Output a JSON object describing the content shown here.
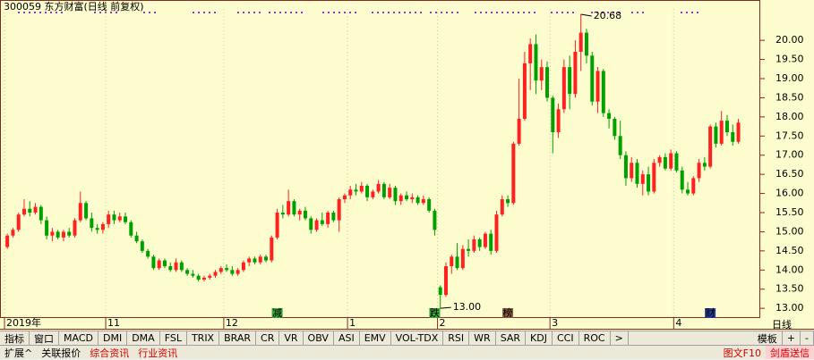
{
  "chart_data": {
    "type": "candlestick",
    "title": "300059 东方财富(日线 前复权)",
    "categories": [
      "2019年",
      null,
      null,
      null,
      null,
      null,
      null,
      null,
      null,
      null,
      null,
      null,
      null,
      null,
      null,
      null,
      null,
      null,
      "11",
      null,
      null,
      null,
      null,
      null,
      null,
      null,
      null,
      null,
      null,
      null,
      null,
      null,
      null,
      null,
      null,
      null,
      null,
      null,
      null,
      "12",
      null,
      null,
      null,
      null,
      null,
      null,
      null,
      null,
      null,
      null,
      null,
      null,
      null,
      null,
      null,
      null,
      null,
      null,
      null,
      null,
      null,
      "1",
      null,
      null,
      null,
      null,
      null,
      null,
      null,
      null,
      null,
      null,
      null,
      null,
      null,
      null,
      null,
      "2",
      null,
      null,
      null,
      null,
      null,
      null,
      null,
      null,
      null,
      null,
      null,
      null,
      null,
      null,
      null,
      null,
      null,
      null,
      null,
      "3",
      null,
      null,
      null,
      null,
      null,
      null,
      null,
      null,
      null,
      null,
      null,
      null,
      null,
      null,
      null,
      null,
      null,
      null,
      null,
      null,
      null,
      "4",
      null,
      null,
      null,
      null,
      null,
      null,
      null,
      null,
      null,
      null,
      null
    ],
    "open": [
      14.6,
      14.9,
      15.05,
      15.45,
      15.6,
      15.5,
      15.65,
      15.3,
      14.9,
      15.0,
      14.85,
      15.0,
      14.9,
      15.3,
      15.75,
      15.35,
      15.1,
      15.05,
      15.2,
      15.45,
      15.3,
      15.4,
      15.25,
      14.9,
      14.75,
      14.5,
      14.35,
      14.05,
      14.25,
      14.1,
      14.0,
      14.2,
      14.0,
      13.9,
      13.85,
      13.75,
      13.8,
      13.85,
      13.95,
      14.05,
      14.0,
      13.9,
      14.0,
      14.2,
      14.3,
      14.2,
      14.35,
      14.25,
      14.85,
      15.5,
      15.45,
      15.8,
      15.45,
      15.55,
      15.35,
      15.05,
      15.3,
      15.2,
      15.5,
      15.3,
      15.85,
      15.95,
      16.1,
      16.05,
      16.2,
      15.9,
      16.05,
      16.25,
      15.9,
      16.15,
      15.8,
      15.95,
      15.85,
      15.9,
      15.75,
      15.85,
      15.55,
      13.55,
      13.35,
      14.1,
      14.35,
      14.05,
      14.55,
      14.5,
      14.8,
      14.6,
      14.95,
      14.5,
      15.45,
      15.85,
      15.75,
      17.3,
      17.95,
      19.4,
      19.9,
      18.95,
      19.3,
      18.5,
      17.6,
      18.2,
      19.3,
      18.6,
      19.7,
      20.2,
      19.6,
      18.4,
      19.2,
      18.1,
      17.95,
      17.5,
      17.0,
      16.4,
      16.8,
      16.25,
      16.5,
      16.05,
      16.8,
      16.95,
      16.65,
      17.05,
      16.6,
      16.1,
      16.0,
      16.4,
      16.8,
      16.7,
      17.75,
      17.3,
      17.9,
      17.6,
      17.35
    ],
    "high": [
      14.95,
      15.1,
      15.5,
      15.85,
      15.8,
      15.75,
      15.7,
      15.4,
      15.1,
      15.05,
      15.05,
      15.1,
      15.35,
      16.05,
      15.8,
      15.5,
      15.2,
      15.25,
      15.55,
      15.55,
      15.5,
      15.5,
      15.3,
      15.0,
      14.8,
      14.55,
      14.4,
      14.3,
      14.3,
      14.2,
      14.3,
      14.25,
      14.05,
      14.0,
      13.9,
      13.85,
      13.9,
      14.0,
      14.1,
      14.15,
      14.1,
      14.05,
      14.25,
      14.35,
      14.35,
      14.4,
      14.4,
      14.9,
      15.6,
      15.7,
      16.1,
      15.85,
      15.6,
      15.65,
      15.4,
      15.35,
      15.5,
      15.55,
      15.55,
      15.9,
      16.0,
      16.2,
      16.25,
      16.3,
      16.25,
      16.1,
      16.35,
      16.3,
      16.25,
      16.2,
      16.0,
      16.05,
      16.0,
      15.95,
      15.95,
      15.9,
      15.6,
      13.6,
      14.2,
      14.4,
      14.7,
      14.65,
      14.8,
      14.9,
      14.85,
      15.0,
      15.05,
      15.55,
      15.95,
      15.95,
      17.35,
      19.0,
      19.7,
      20.05,
      20.15,
      19.5,
      19.45,
      18.55,
      18.35,
      19.5,
      19.6,
      20.0,
      20.68,
      20.3,
      19.7,
      19.3,
      19.25,
      18.2,
      18.0,
      17.9,
      17.1,
      16.95,
      16.9,
      16.6,
      16.7,
      16.9,
      17.0,
      17.05,
      17.15,
      17.1,
      16.7,
      16.3,
      16.45,
      16.9,
      16.95,
      17.8,
      17.85,
      18.15,
      18.05,
      17.8,
      17.95
    ],
    "low": [
      14.55,
      14.85,
      15.0,
      15.4,
      15.4,
      15.45,
      15.2,
      14.8,
      14.75,
      14.8,
      14.75,
      14.85,
      14.85,
      15.25,
      15.3,
      15.0,
      14.95,
      14.95,
      15.1,
      15.2,
      15.25,
      15.2,
      14.85,
      14.7,
      14.45,
      14.3,
      14.0,
      14.0,
      14.05,
      13.95,
      13.95,
      13.95,
      13.85,
      13.8,
      13.7,
      13.7,
      13.75,
      13.8,
      13.9,
      13.95,
      13.85,
      13.85,
      13.95,
      14.1,
      14.15,
      14.15,
      14.2,
      14.2,
      14.8,
      15.35,
      15.4,
      15.4,
      15.3,
      15.3,
      14.95,
      15.0,
      15.15,
      15.1,
      15.25,
      15.0,
      15.75,
      15.85,
      15.95,
      16.0,
      15.8,
      15.85,
      16.0,
      15.85,
      15.85,
      15.7,
      15.7,
      15.8,
      15.75,
      15.7,
      15.7,
      15.5,
      14.9,
      13.0,
      13.3,
      13.9,
      14.0,
      14.0,
      14.35,
      14.45,
      14.5,
      14.55,
      14.4,
      14.45,
      15.4,
      15.65,
      15.7,
      17.25,
      17.9,
      18.7,
      18.6,
      18.7,
      18.4,
      17.05,
      17.45,
      18.1,
      18.2,
      18.5,
      19.2,
      19.4,
      18.3,
      18.1,
      18.0,
      17.7,
      17.4,
      16.9,
      16.2,
      16.3,
      16.15,
      15.95,
      15.95,
      16.0,
      16.7,
      16.6,
      16.6,
      16.55,
      16.0,
      15.95,
      15.95,
      16.3,
      16.6,
      16.65,
      17.2,
      17.25,
      17.5,
      17.25,
      17.3
    ],
    "close": [
      14.9,
      15.05,
      15.45,
      15.6,
      15.5,
      15.65,
      15.3,
      14.9,
      15.0,
      14.85,
      15.0,
      14.9,
      15.3,
      15.75,
      15.35,
      15.1,
      15.05,
      15.2,
      15.45,
      15.3,
      15.4,
      15.25,
      14.9,
      14.75,
      14.5,
      14.35,
      14.05,
      14.25,
      14.1,
      14.0,
      14.2,
      14.0,
      13.9,
      13.85,
      13.75,
      13.8,
      13.85,
      13.95,
      14.05,
      14.0,
      13.9,
      14.0,
      14.2,
      14.3,
      14.2,
      14.35,
      14.25,
      14.85,
      15.5,
      15.45,
      15.8,
      15.45,
      15.55,
      15.35,
      15.05,
      15.3,
      15.2,
      15.5,
      15.3,
      15.85,
      15.95,
      16.1,
      16.05,
      16.2,
      15.9,
      16.05,
      16.25,
      15.9,
      16.15,
      15.8,
      15.95,
      15.85,
      15.9,
      15.75,
      15.85,
      15.55,
      15.05,
      13.35,
      14.1,
      14.35,
      14.05,
      14.55,
      14.5,
      14.8,
      14.6,
      14.95,
      14.5,
      15.45,
      15.85,
      15.75,
      17.3,
      17.95,
      19.4,
      19.9,
      18.95,
      19.3,
      18.5,
      17.6,
      18.2,
      19.3,
      18.6,
      19.7,
      20.2,
      19.6,
      18.4,
      19.2,
      18.1,
      17.95,
      17.5,
      17.0,
      16.4,
      16.8,
      16.25,
      16.5,
      16.05,
      16.8,
      16.95,
      16.65,
      17.05,
      16.6,
      16.1,
      16.0,
      16.4,
      16.8,
      16.7,
      17.75,
      17.3,
      17.9,
      17.6,
      17.35,
      17.85
    ],
    "markers": [
      null,
      null,
      null,
      null,
      null,
      null,
      null,
      null,
      null,
      null,
      null,
      null,
      null,
      null,
      null,
      null,
      null,
      null,
      null,
      null,
      null,
      null,
      null,
      null,
      null,
      null,
      null,
      null,
      null,
      null,
      null,
      null,
      null,
      null,
      null,
      null,
      null,
      null,
      null,
      null,
      null,
      null,
      null,
      null,
      null,
      null,
      null,
      null,
      {
        "label": "减",
        "color": "#3aa83a"
      },
      null,
      null,
      null,
      null,
      null,
      null,
      null,
      null,
      null,
      null,
      null,
      null,
      null,
      null,
      null,
      null,
      null,
      null,
      null,
      null,
      null,
      null,
      null,
      null,
      null,
      null,
      null,
      {
        "label": "跌",
        "color": "#3aa83a"
      },
      null,
      null,
      null,
      null,
      null,
      null,
      null,
      null,
      null,
      null,
      null,
      null,
      {
        "label": "榜",
        "color": "#8a6040"
      },
      null,
      null,
      null,
      null,
      null,
      null,
      null,
      null,
      null,
      null,
      null,
      null,
      null,
      null,
      null,
      null,
      null,
      null,
      null,
      null,
      null,
      null,
      null,
      null,
      null,
      null,
      null,
      null,
      null,
      null,
      null,
      null,
      null,
      null,
      null,
      {
        "label": "财",
        "color": "#2a3f9a"
      },
      null,
      null,
      null,
      null,
      null
    ],
    "annotations": [
      {
        "value": 20.68,
        "label": "20.68"
      },
      {
        "value": 13,
        "label": "13.00"
      }
    ],
    "up_color": "#ff2020",
    "down_color": "#00a000",
    "ylim": [
      12.77,
      20.82
    ],
    "yticks": [
      {
        "value": 13,
        "label": "13.00"
      },
      {
        "value": 13.5,
        "label": "13.50"
      },
      {
        "value": 14,
        "label": "14.00"
      },
      {
        "value": 14.5,
        "label": "14.50"
      },
      {
        "value": 15,
        "label": "15.00"
      },
      {
        "value": 15.5,
        "label": "15.50"
      },
      {
        "value": 16,
        "label": "16.00"
      },
      {
        "value": 16.5,
        "label": "16.50"
      },
      {
        "value": 17,
        "label": "17.00"
      },
      {
        "value": 17.5,
        "label": "17.50"
      },
      {
        "value": 18,
        "label": "18.00"
      },
      {
        "value": 18.5,
        "label": "18.50"
      },
      {
        "value": 19,
        "label": "19.00"
      },
      {
        "value": 19.5,
        "label": "19.50"
      },
      {
        "value": 20,
        "label": "20.00"
      }
    ],
    "grid": false
  },
  "toolbar": {
    "tabs": [
      "指标",
      "窗口",
      "MACD",
      "DMI",
      "DMA",
      "FSL",
      "TRIX",
      "BRAR",
      "CR",
      "VR",
      "OBV",
      "ASI",
      "EMV",
      "VOL-TDX",
      "RSI",
      "WR",
      "SAR",
      "KDJ",
      "CCI",
      "ROC",
      ">"
    ],
    "template": "模板",
    "plus": "+",
    "minus": "-",
    "period": "日线"
  },
  "bottom_bar": {
    "tabs": [
      "扩展^",
      "关联报价",
      "综合资讯",
      "行业资讯"
    ],
    "f10": "图文F10",
    "signal": "剑盾送信"
  }
}
